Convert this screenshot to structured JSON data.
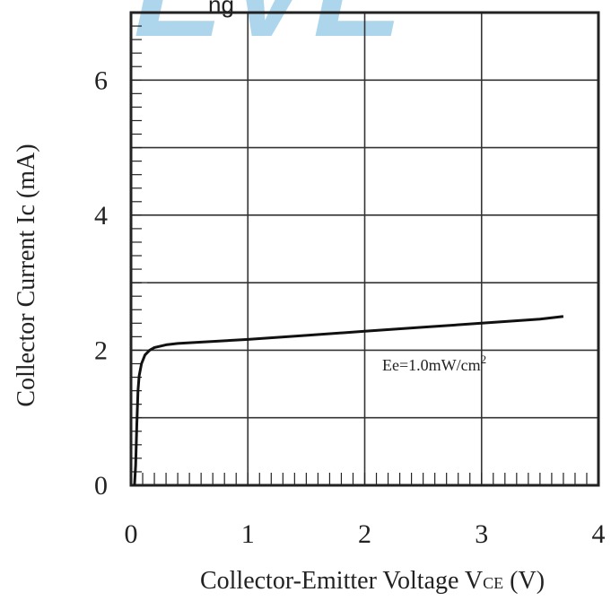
{
  "watermark_text": "EVE",
  "header_fragment": "ng",
  "chart_data": {
    "type": "line",
    "xlabel_main": "Collector-Emitter Voltage V",
    "xlabel_sub": "CE",
    "xlabel_unit": " (V)",
    "ylabel": "Collector Current Ic (mA)",
    "xlim": [
      0,
      4
    ],
    "ylim": [
      0,
      7
    ],
    "x_ticks": [
      "0",
      "1",
      "2",
      "3",
      "4"
    ],
    "y_ticks": [
      "0",
      "2",
      "4",
      "6"
    ],
    "grid": true,
    "annotation": {
      "text": "Ee=1.0mW/cm",
      "superscript": "2",
      "x": 2.15,
      "y": 1.7
    },
    "series": [
      {
        "x": [
          0.03,
          0.04,
          0.05,
          0.06,
          0.07,
          0.09,
          0.12,
          0.16,
          0.2,
          0.3,
          0.4,
          0.5,
          1.0,
          1.5,
          2.0,
          2.5,
          3.0,
          3.5,
          3.7
        ],
        "y": [
          0.0,
          0.3,
          0.9,
          1.4,
          1.62,
          1.8,
          1.93,
          2.0,
          2.04,
          2.08,
          2.1,
          2.11,
          2.16,
          2.22,
          2.28,
          2.34,
          2.4,
          2.46,
          2.5
        ]
      }
    ]
  },
  "colors": {
    "axis": "#222222",
    "grid": "#333333",
    "line": "#111111",
    "watermark": "#9fd0ea"
  }
}
